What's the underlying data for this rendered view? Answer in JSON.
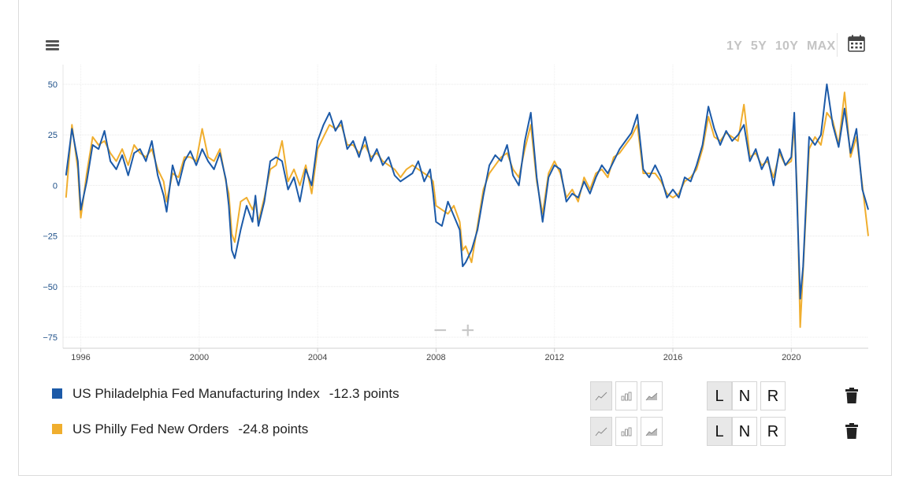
{
  "toolbar": {
    "range_buttons": [
      "1Y",
      "5Y",
      "10Y",
      "MAX"
    ]
  },
  "zoom": {
    "out_label": "−",
    "in_label": "+"
  },
  "chart_data": {
    "type": "line",
    "title": "",
    "xlabel": "",
    "ylabel": "",
    "x_ticks": [
      "1996",
      "2000",
      "2004",
      "2008",
      "2012",
      "2016",
      "2020"
    ],
    "y_ticks": [
      "50",
      "25",
      "0",
      "-25",
      "-50",
      "-75"
    ],
    "xlim": [
      1995.4,
      2022.6
    ],
    "ylim": [
      -75,
      50
    ],
    "grid": true,
    "series": [
      {
        "name": "US Philadelphia Fed Manufacturing Index",
        "color": "#1c5aa8",
        "points": [
          [
            1995.5,
            5
          ],
          [
            1995.7,
            28
          ],
          [
            1995.9,
            12
          ],
          [
            1996.0,
            -12
          ],
          [
            1996.2,
            2
          ],
          [
            1996.4,
            20
          ],
          [
            1996.6,
            18
          ],
          [
            1996.8,
            27
          ],
          [
            1997.0,
            12
          ],
          [
            1997.2,
            8
          ],
          [
            1997.4,
            15
          ],
          [
            1997.6,
            5
          ],
          [
            1997.8,
            16
          ],
          [
            1998.0,
            18
          ],
          [
            1998.2,
            12
          ],
          [
            1998.4,
            22
          ],
          [
            1998.6,
            5
          ],
          [
            1998.8,
            -5
          ],
          [
            1998.9,
            -13
          ],
          [
            1999.1,
            10
          ],
          [
            1999.3,
            0
          ],
          [
            1999.5,
            12
          ],
          [
            1999.7,
            17
          ],
          [
            1999.9,
            10
          ],
          [
            2000.1,
            18
          ],
          [
            2000.3,
            12
          ],
          [
            2000.5,
            8
          ],
          [
            2000.7,
            16
          ],
          [
            2000.9,
            3
          ],
          [
            2001.0,
            -10
          ],
          [
            2001.1,
            -32
          ],
          [
            2001.2,
            -36
          ],
          [
            2001.4,
            -22
          ],
          [
            2001.6,
            -10
          ],
          [
            2001.8,
            -18
          ],
          [
            2001.9,
            -5
          ],
          [
            2002.0,
            -20
          ],
          [
            2002.2,
            -8
          ],
          [
            2002.4,
            12
          ],
          [
            2002.6,
            14
          ],
          [
            2002.8,
            12
          ],
          [
            2003.0,
            -2
          ],
          [
            2003.2,
            4
          ],
          [
            2003.4,
            -8
          ],
          [
            2003.6,
            8
          ],
          [
            2003.8,
            0
          ],
          [
            2004.0,
            22
          ],
          [
            2004.2,
            30
          ],
          [
            2004.4,
            36
          ],
          [
            2004.6,
            27
          ],
          [
            2004.8,
            32
          ],
          [
            2005.0,
            18
          ],
          [
            2005.2,
            22
          ],
          [
            2005.4,
            14
          ],
          [
            2005.6,
            24
          ],
          [
            2005.8,
            12
          ],
          [
            2006.0,
            18
          ],
          [
            2006.2,
            10
          ],
          [
            2006.4,
            14
          ],
          [
            2006.6,
            5
          ],
          [
            2006.8,
            2
          ],
          [
            2007.0,
            4
          ],
          [
            2007.2,
            6
          ],
          [
            2007.4,
            12
          ],
          [
            2007.6,
            2
          ],
          [
            2007.8,
            8
          ],
          [
            2007.9,
            -4
          ],
          [
            2008.0,
            -18
          ],
          [
            2008.2,
            -20
          ],
          [
            2008.4,
            -8
          ],
          [
            2008.6,
            -15
          ],
          [
            2008.8,
            -22
          ],
          [
            2008.9,
            -40
          ],
          [
            2009.0,
            -38
          ],
          [
            2009.2,
            -32
          ],
          [
            2009.4,
            -22
          ],
          [
            2009.6,
            -5
          ],
          [
            2009.8,
            10
          ],
          [
            2010.0,
            15
          ],
          [
            2010.2,
            12
          ],
          [
            2010.4,
            20
          ],
          [
            2010.6,
            5
          ],
          [
            2010.8,
            0
          ],
          [
            2011.0,
            22
          ],
          [
            2011.2,
            36
          ],
          [
            2011.4,
            4
          ],
          [
            2011.6,
            -18
          ],
          [
            2011.8,
            4
          ],
          [
            2012.0,
            10
          ],
          [
            2012.2,
            8
          ],
          [
            2012.4,
            -8
          ],
          [
            2012.6,
            -4
          ],
          [
            2012.8,
            -6
          ],
          [
            2013.0,
            2
          ],
          [
            2013.2,
            -4
          ],
          [
            2013.4,
            4
          ],
          [
            2013.6,
            10
          ],
          [
            2013.8,
            6
          ],
          [
            2014.0,
            12
          ],
          [
            2014.2,
            18
          ],
          [
            2014.4,
            22
          ],
          [
            2014.6,
            26
          ],
          [
            2014.8,
            35
          ],
          [
            2015.0,
            8
          ],
          [
            2015.2,
            4
          ],
          [
            2015.4,
            10
          ],
          [
            2015.6,
            4
          ],
          [
            2015.8,
            -6
          ],
          [
            2016.0,
            -2
          ],
          [
            2016.2,
            -6
          ],
          [
            2016.4,
            4
          ],
          [
            2016.6,
            2
          ],
          [
            2016.8,
            10
          ],
          [
            2017.0,
            20
          ],
          [
            2017.2,
            39
          ],
          [
            2017.4,
            28
          ],
          [
            2017.6,
            20
          ],
          [
            2017.8,
            27
          ],
          [
            2018.0,
            22
          ],
          [
            2018.2,
            25
          ],
          [
            2018.4,
            30
          ],
          [
            2018.6,
            12
          ],
          [
            2018.8,
            18
          ],
          [
            2019.0,
            8
          ],
          [
            2019.2,
            14
          ],
          [
            2019.4,
            0
          ],
          [
            2019.6,
            18
          ],
          [
            2019.8,
            10
          ],
          [
            2020.0,
            14
          ],
          [
            2020.1,
            36
          ],
          [
            2020.2,
            -10
          ],
          [
            2020.3,
            -56
          ],
          [
            2020.4,
            -40
          ],
          [
            2020.6,
            24
          ],
          [
            2020.8,
            20
          ],
          [
            2021.0,
            25
          ],
          [
            2021.2,
            50
          ],
          [
            2021.4,
            30
          ],
          [
            2021.6,
            19
          ],
          [
            2021.8,
            38
          ],
          [
            2022.0,
            16
          ],
          [
            2022.2,
            28
          ],
          [
            2022.4,
            -2
          ],
          [
            2022.6,
            -12
          ]
        ]
      },
      {
        "name": "US Philly Fed New Orders",
        "color": "#f0ae2e",
        "points": [
          [
            1995.5,
            -6
          ],
          [
            1995.7,
            30
          ],
          [
            1995.9,
            8
          ],
          [
            1996.0,
            -16
          ],
          [
            1996.2,
            6
          ],
          [
            1996.4,
            24
          ],
          [
            1996.6,
            20
          ],
          [
            1996.8,
            22
          ],
          [
            1997.0,
            16
          ],
          [
            1997.2,
            12
          ],
          [
            1997.4,
            18
          ],
          [
            1997.6,
            10
          ],
          [
            1997.8,
            20
          ],
          [
            1998.0,
            16
          ],
          [
            1998.2,
            14
          ],
          [
            1998.4,
            18
          ],
          [
            1998.6,
            8
          ],
          [
            1998.8,
            2
          ],
          [
            1998.9,
            -8
          ],
          [
            1999.1,
            6
          ],
          [
            1999.3,
            4
          ],
          [
            1999.5,
            14
          ],
          [
            1999.7,
            14
          ],
          [
            1999.9,
            12
          ],
          [
            2000.1,
            28
          ],
          [
            2000.3,
            14
          ],
          [
            2000.5,
            12
          ],
          [
            2000.7,
            18
          ],
          [
            2000.9,
            2
          ],
          [
            2001.0,
            -4
          ],
          [
            2001.1,
            -24
          ],
          [
            2001.2,
            -28
          ],
          [
            2001.4,
            -8
          ],
          [
            2001.6,
            -6
          ],
          [
            2001.8,
            -12
          ],
          [
            2001.9,
            -8
          ],
          [
            2002.0,
            -18
          ],
          [
            2002.2,
            -6
          ],
          [
            2002.4,
            8
          ],
          [
            2002.6,
            10
          ],
          [
            2002.8,
            22
          ],
          [
            2003.0,
            2
          ],
          [
            2003.2,
            8
          ],
          [
            2003.4,
            0
          ],
          [
            2003.6,
            10
          ],
          [
            2003.8,
            -4
          ],
          [
            2004.0,
            18
          ],
          [
            2004.2,
            24
          ],
          [
            2004.4,
            30
          ],
          [
            2004.6,
            28
          ],
          [
            2004.8,
            30
          ],
          [
            2005.0,
            20
          ],
          [
            2005.2,
            20
          ],
          [
            2005.4,
            16
          ],
          [
            2005.6,
            20
          ],
          [
            2005.8,
            14
          ],
          [
            2006.0,
            16
          ],
          [
            2006.2,
            12
          ],
          [
            2006.4,
            10
          ],
          [
            2006.6,
            8
          ],
          [
            2006.8,
            4
          ],
          [
            2007.0,
            8
          ],
          [
            2007.2,
            10
          ],
          [
            2007.4,
            8
          ],
          [
            2007.6,
            6
          ],
          [
            2007.8,
            4
          ],
          [
            2007.9,
            2
          ],
          [
            2008.0,
            -10
          ],
          [
            2008.2,
            -12
          ],
          [
            2008.4,
            -14
          ],
          [
            2008.6,
            -10
          ],
          [
            2008.8,
            -18
          ],
          [
            2008.9,
            -32
          ],
          [
            2009.0,
            -30
          ],
          [
            2009.2,
            -38
          ],
          [
            2009.4,
            -20
          ],
          [
            2009.6,
            -2
          ],
          [
            2009.8,
            6
          ],
          [
            2010.0,
            10
          ],
          [
            2010.2,
            14
          ],
          [
            2010.4,
            16
          ],
          [
            2010.6,
            8
          ],
          [
            2010.8,
            4
          ],
          [
            2011.0,
            18
          ],
          [
            2011.2,
            30
          ],
          [
            2011.4,
            2
          ],
          [
            2011.6,
            -14
          ],
          [
            2011.8,
            6
          ],
          [
            2012.0,
            12
          ],
          [
            2012.2,
            6
          ],
          [
            2012.4,
            -6
          ],
          [
            2012.6,
            -2
          ],
          [
            2012.8,
            -8
          ],
          [
            2013.0,
            4
          ],
          [
            2013.2,
            -2
          ],
          [
            2013.4,
            6
          ],
          [
            2013.6,
            8
          ],
          [
            2013.8,
            4
          ],
          [
            2014.0,
            14
          ],
          [
            2014.2,
            16
          ],
          [
            2014.4,
            20
          ],
          [
            2014.6,
            24
          ],
          [
            2014.8,
            30
          ],
          [
            2015.0,
            6
          ],
          [
            2015.2,
            6
          ],
          [
            2015.4,
            6
          ],
          [
            2015.6,
            2
          ],
          [
            2015.8,
            -4
          ],
          [
            2016.0,
            -6
          ],
          [
            2016.2,
            -4
          ],
          [
            2016.4,
            2
          ],
          [
            2016.6,
            4
          ],
          [
            2016.8,
            8
          ],
          [
            2017.0,
            18
          ],
          [
            2017.2,
            34
          ],
          [
            2017.4,
            24
          ],
          [
            2017.6,
            22
          ],
          [
            2017.8,
            26
          ],
          [
            2018.0,
            24
          ],
          [
            2018.2,
            22
          ],
          [
            2018.4,
            40
          ],
          [
            2018.6,
            14
          ],
          [
            2018.8,
            16
          ],
          [
            2019.0,
            10
          ],
          [
            2019.2,
            12
          ],
          [
            2019.4,
            4
          ],
          [
            2019.6,
            16
          ],
          [
            2019.8,
            10
          ],
          [
            2020.0,
            12
          ],
          [
            2020.1,
            30
          ],
          [
            2020.2,
            -4
          ],
          [
            2020.3,
            -70
          ],
          [
            2020.4,
            -42
          ],
          [
            2020.6,
            18
          ],
          [
            2020.8,
            24
          ],
          [
            2021.0,
            20
          ],
          [
            2021.2,
            36
          ],
          [
            2021.4,
            32
          ],
          [
            2021.6,
            20
          ],
          [
            2021.8,
            46
          ],
          [
            2022.0,
            14
          ],
          [
            2022.2,
            24
          ],
          [
            2022.4,
            0
          ],
          [
            2022.6,
            -25
          ]
        ]
      }
    ]
  },
  "legend": [
    {
      "name": "US Philadelphia Fed Manufacturing Index",
      "value": "-12.3 points",
      "color": "#1c5aa8"
    },
    {
      "name": "US Philly Fed New Orders",
      "value": "-24.8 points",
      "color": "#f0ae2e"
    }
  ],
  "axis_buttons": [
    "L",
    "N",
    "R"
  ]
}
